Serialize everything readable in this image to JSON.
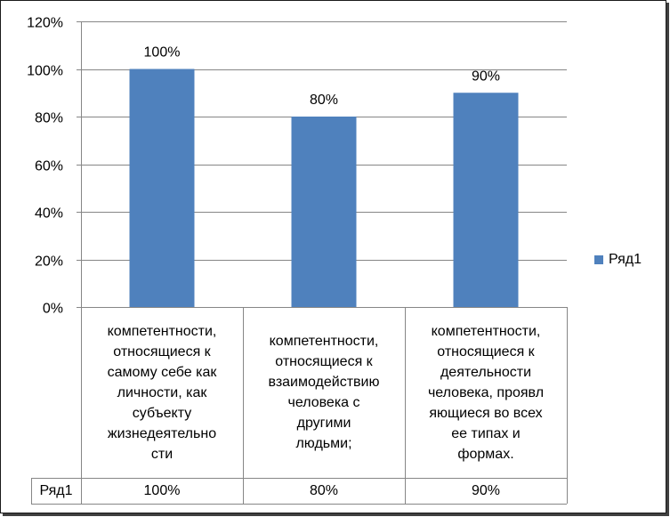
{
  "chart_data": {
    "type": "bar",
    "categories": [
      "компетентности, относящиеся к самому себе как личности, как субъекту жизнедеятельно сти",
      "компетентности, относящиеся к взаимодействию человека с другими людьми;",
      "компетентности, относящиеся к деятельности человека, проявл яющиеся во всех ее типах и формах."
    ],
    "category_lines": [
      [
        "компетентности,",
        "относящиеся к",
        "самому себе как",
        "личности, как",
        "субъекту",
        "жизнедеятельно",
        "сти"
      ],
      [
        "компетентности,",
        "относящиеся к",
        "взаимодействию",
        "человека с",
        "другими",
        "людьми;"
      ],
      [
        "компетентности,",
        "относящиеся к",
        "деятельности",
        "человека, проявл",
        "яющиеся во всех",
        "ее типах и",
        "формах."
      ]
    ],
    "series": [
      {
        "name": "Ряд1",
        "values": [
          1.0,
          0.8,
          0.9
        ],
        "color": "#4f81bd"
      }
    ],
    "data_labels": [
      "100%",
      "80%",
      "90%"
    ],
    "table_values": [
      "100%",
      "80%",
      "90%"
    ],
    "ylim": [
      0,
      1.2
    ],
    "yticks": [
      0,
      0.2,
      0.4,
      0.6,
      0.8,
      1.0,
      1.2
    ],
    "ytick_labels": [
      "0%",
      "20%",
      "40%",
      "60%",
      "80%",
      "100%",
      "120%"
    ],
    "grid": true,
    "legend_position": "right",
    "data_table": true
  }
}
